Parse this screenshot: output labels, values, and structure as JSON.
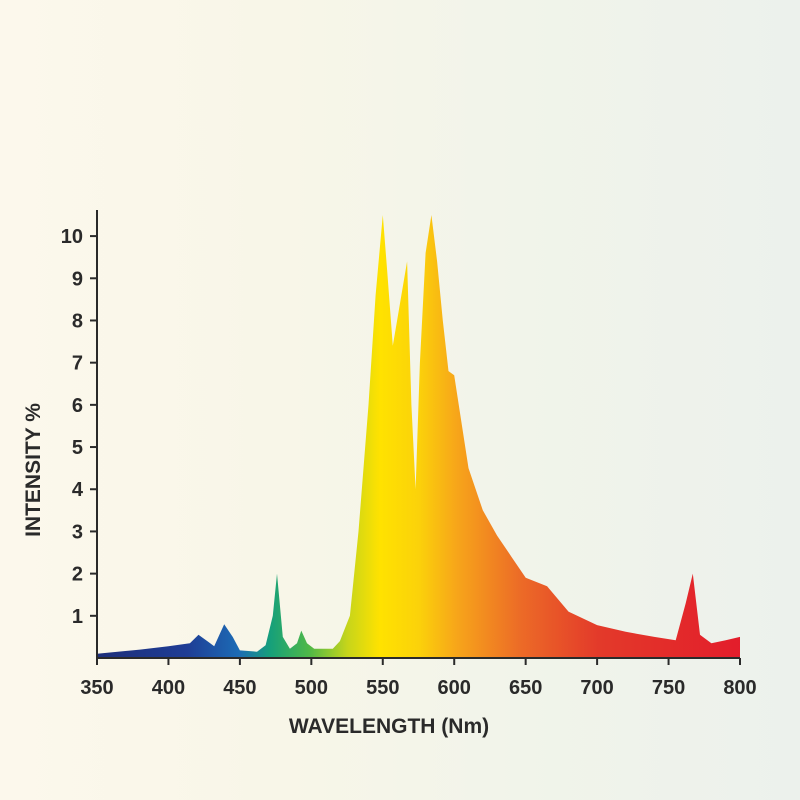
{
  "chart_data": {
    "type": "area",
    "title": "",
    "xlabel": "WAVELENGTH (Nm)",
    "ylabel": "INTENSITY %",
    "xlim": [
      350,
      800
    ],
    "ylim": [
      0,
      10.5
    ],
    "x_ticks": [
      350,
      400,
      450,
      500,
      550,
      600,
      650,
      700,
      750,
      800
    ],
    "y_ticks": [
      1,
      2,
      3,
      4,
      5,
      6,
      7,
      8,
      9,
      10
    ],
    "grid": false,
    "legend": "none",
    "series": [
      {
        "points": [
          [
            350,
            0.1
          ],
          [
            380,
            0.2
          ],
          [
            400,
            0.28
          ],
          [
            415,
            0.35
          ],
          [
            421,
            0.55
          ],
          [
            428,
            0.38
          ],
          [
            432,
            0.28
          ],
          [
            439,
            0.8
          ],
          [
            445,
            0.5
          ],
          [
            450,
            0.18
          ],
          [
            462,
            0.15
          ],
          [
            468,
            0.3
          ],
          [
            473,
            1.0
          ],
          [
            476,
            2.0
          ],
          [
            480,
            0.5
          ],
          [
            485,
            0.22
          ],
          [
            490,
            0.35
          ],
          [
            493,
            0.65
          ],
          [
            497,
            0.35
          ],
          [
            502,
            0.22
          ],
          [
            515,
            0.22
          ],
          [
            520,
            0.4
          ],
          [
            527,
            1.0
          ],
          [
            533,
            3.0
          ],
          [
            540,
            6.0
          ],
          [
            545,
            8.6
          ],
          [
            550,
            10.5
          ],
          [
            553,
            9.2
          ],
          [
            557,
            7.4
          ],
          [
            560,
            8.0
          ],
          [
            564,
            8.8
          ],
          [
            567,
            9.4
          ],
          [
            570,
            6.0
          ],
          [
            573,
            4.0
          ],
          [
            576,
            7.0
          ],
          [
            580,
            9.6
          ],
          [
            584,
            10.5
          ],
          [
            588,
            9.4
          ],
          [
            592,
            8.0
          ],
          [
            596,
            6.8
          ],
          [
            600,
            6.7
          ],
          [
            610,
            4.5
          ],
          [
            620,
            3.5
          ],
          [
            630,
            2.9
          ],
          [
            640,
            2.4
          ],
          [
            650,
            1.9
          ],
          [
            665,
            1.7
          ],
          [
            680,
            1.1
          ],
          [
            700,
            0.78
          ],
          [
            720,
            0.62
          ],
          [
            740,
            0.5
          ],
          [
            755,
            0.42
          ],
          [
            762,
            1.3
          ],
          [
            767,
            2.0
          ],
          [
            772,
            0.55
          ],
          [
            780,
            0.35
          ],
          [
            790,
            0.42
          ],
          [
            800,
            0.5
          ]
        ]
      }
    ]
  }
}
